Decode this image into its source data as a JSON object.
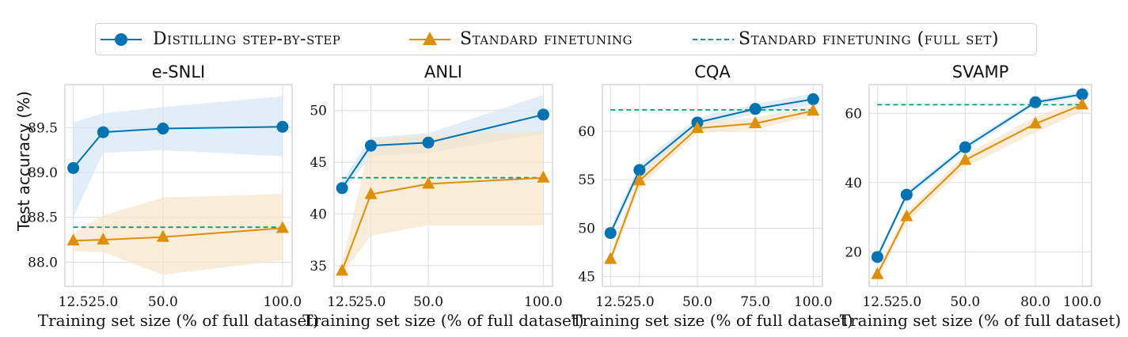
{
  "legend": {
    "items": [
      {
        "label": "Distilling step-by-step",
        "color": "#0173b2",
        "marker": "circle"
      },
      {
        "label": "Standard finetuning",
        "color": "#de8f05",
        "marker": "triangle"
      },
      {
        "label": "Standard finetuning (full set)",
        "color": "#029e73",
        "marker": "dashed-line"
      }
    ]
  },
  "ylabel": "Test accuracy (%)",
  "colors": {
    "distill": "#0173b2",
    "standard": "#de8f05",
    "fullset": "#029e73",
    "grid": "#dcdcdc"
  },
  "chart_data": [
    {
      "type": "line",
      "title": "e-SNLI",
      "xlabel": "Training set size (% of full dataset)",
      "xticks": [
        12.5,
        25.0,
        50.0,
        100.0
      ],
      "xtick_labels": [
        "12.5",
        "25.0",
        "50.0",
        "100.0"
      ],
      "yticks": [
        88.0,
        88.5,
        89.0,
        89.5
      ],
      "ytick_labels": [
        "88.0",
        "88.5",
        "89.0",
        "89.5"
      ],
      "xlim": [
        9.0,
        104.0
      ],
      "ylim": [
        87.73,
        89.98
      ],
      "grid": true,
      "series": [
        {
          "name": "Distilling step-by-step",
          "x": [
            12.5,
            25.0,
            50.0,
            100.0
          ],
          "values": [
            89.05,
            89.45,
            89.49,
            89.51
          ],
          "band_low": [
            88.5,
            89.22,
            89.25,
            89.18
          ],
          "band_high": [
            89.56,
            89.66,
            89.73,
            89.85
          ]
        },
        {
          "name": "Standard finetuning",
          "x": [
            12.5,
            25.0,
            50.0,
            100.0
          ],
          "values": [
            88.24,
            88.25,
            88.28,
            88.38
          ],
          "band_low": [
            88.12,
            88.11,
            87.86,
            88.02
          ],
          "band_high": [
            88.32,
            88.52,
            88.72,
            88.76
          ]
        }
      ],
      "full_set": 88.39
    },
    {
      "type": "line",
      "title": "ANLI",
      "xlabel": "Training set size (% of full dataset)",
      "xticks": [
        12.5,
        25.0,
        50.0,
        100.0
      ],
      "xtick_labels": [
        "12.5",
        "25.0",
        "50.0",
        "100.0"
      ],
      "yticks": [
        35,
        40,
        45,
        50
      ],
      "ytick_labels": [
        "35",
        "40",
        "45",
        "50"
      ],
      "xlim": [
        9.0,
        104.0
      ],
      "ylim": [
        33.0,
        52.5
      ],
      "grid": true,
      "series": [
        {
          "name": "Distilling step-by-step",
          "x": [
            12.5,
            25.0,
            50.0,
            100.0
          ],
          "values": [
            42.5,
            46.6,
            46.9,
            49.6
          ],
          "band_low": [
            42.0,
            45.6,
            45.9,
            47.8
          ],
          "band_high": [
            43.2,
            47.4,
            47.8,
            51.5
          ]
        },
        {
          "name": "Standard finetuning",
          "x": [
            12.5,
            25.0,
            50.0,
            100.0
          ],
          "values": [
            34.5,
            41.9,
            42.9,
            43.5
          ],
          "band_low": [
            34.2,
            37.9,
            38.9,
            38.9
          ],
          "band_high": [
            35.2,
            47.2,
            47.6,
            48.0
          ]
        }
      ],
      "full_set": 43.5
    },
    {
      "type": "line",
      "title": "CQA",
      "xlabel": "Training set size (% of full dataset)",
      "xticks": [
        12.5,
        25.0,
        50.0,
        75.0,
        100.0
      ],
      "xtick_labels": [
        "12.5",
        "25.0",
        "50.0",
        "75.0",
        "100.0"
      ],
      "yticks": [
        45,
        50,
        55,
        60
      ],
      "ytick_labels": [
        "45",
        "50",
        "55",
        "60"
      ],
      "xlim": [
        9.0,
        104.0
      ],
      "ylim": [
        44.0,
        64.8
      ],
      "grid": true,
      "series": [
        {
          "name": "Distilling step-by-step",
          "x": [
            12.5,
            25.0,
            50.0,
            75.0,
            100.0
          ],
          "values": [
            49.5,
            56.0,
            60.9,
            62.3,
            63.3
          ],
          "band_low": [
            49.0,
            55.4,
            60.4,
            61.8,
            62.7
          ],
          "band_high": [
            50.0,
            56.6,
            61.4,
            62.8,
            63.9
          ]
        },
        {
          "name": "Standard finetuning",
          "x": [
            12.5,
            25.0,
            50.0,
            75.0,
            100.0
          ],
          "values": [
            46.8,
            54.9,
            60.3,
            60.8,
            62.1
          ],
          "band_low": [
            46.2,
            54.2,
            59.8,
            60.2,
            61.6
          ],
          "band_high": [
            47.4,
            55.6,
            60.8,
            61.4,
            62.6
          ]
        }
      ],
      "full_set": 62.2
    },
    {
      "type": "line",
      "title": "SVAMP",
      "xlabel": "Training set size (% of full dataset)",
      "xticks": [
        12.5,
        25.0,
        50.0,
        80.0,
        100.0
      ],
      "xtick_labels": [
        "12.5",
        "25.0",
        "50.0",
        "80.0",
        "100.0"
      ],
      "yticks": [
        20,
        40,
        60
      ],
      "ytick_labels": [
        "20",
        "40",
        "60"
      ],
      "xlim": [
        9.0,
        104.0
      ],
      "ylim": [
        10.0,
        68.3
      ],
      "grid": true,
      "series": [
        {
          "name": "Distilling step-by-step",
          "x": [
            12.5,
            25.0,
            50.0,
            80.0,
            100.0
          ],
          "values": [
            18.5,
            36.5,
            50.2,
            63.2,
            65.5
          ],
          "band_low": [
            17.5,
            35.5,
            49.2,
            62.4,
            64.7
          ],
          "band_high": [
            19.5,
            37.5,
            51.2,
            64.0,
            66.3
          ]
        },
        {
          "name": "Standard finetuning",
          "x": [
            12.5,
            25.0,
            50.0,
            80.0,
            100.0
          ],
          "values": [
            13.5,
            30.2,
            46.5,
            57.0,
            62.5
          ],
          "band_low": [
            12.0,
            28.5,
            44.5,
            54.5,
            60.5
          ],
          "band_high": [
            15.0,
            31.5,
            48.0,
            59.0,
            64.0
          ]
        }
      ],
      "full_set": 62.5
    }
  ]
}
